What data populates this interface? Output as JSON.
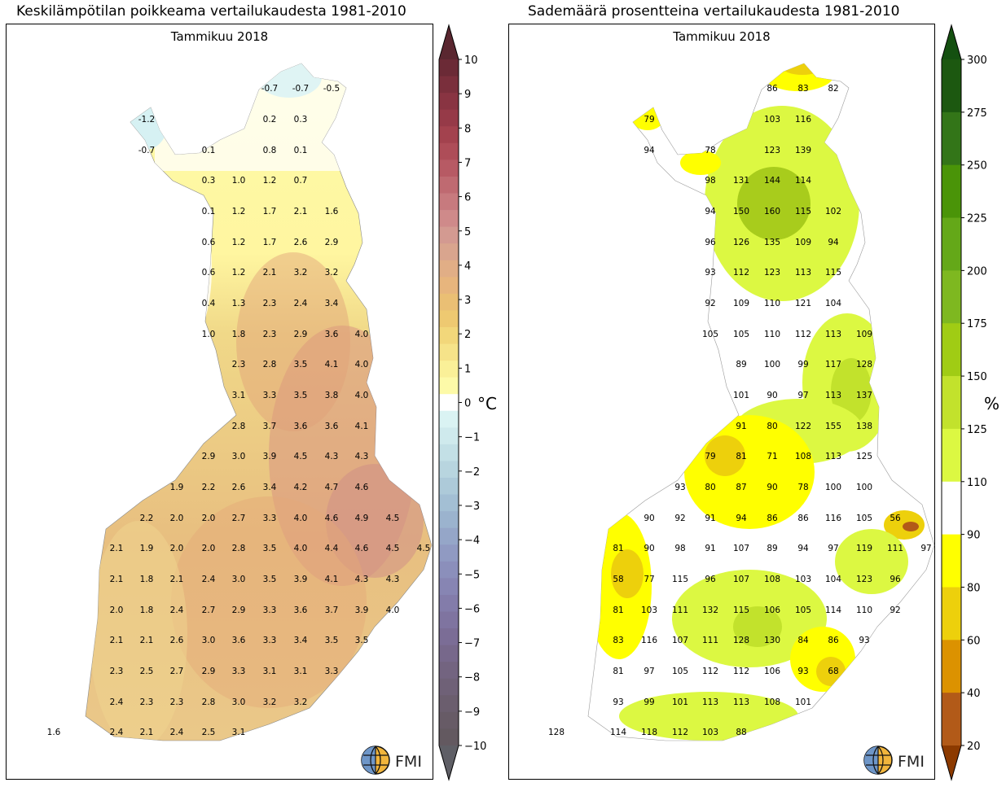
{
  "left": {
    "title": "Keskilämpötilan poikkeama vertailukaudesta 1981-2010",
    "subtitle": "Tammikuu 2018",
    "unit": "°C",
    "colorbar_ticks": [
      "10",
      "9",
      "8",
      "7",
      "6",
      "5",
      "4",
      "3",
      "2",
      "1",
      "0",
      "−1",
      "−2",
      "−3",
      "−4",
      "−5",
      "−6",
      "−7",
      "−8",
      "−9",
      "−10"
    ],
    "labels": [
      [
        "-0.7",
        331,
        108
      ],
      [
        "-0.7",
        369,
        108
      ],
      [
        "-0.5",
        407,
        108
      ],
      [
        "-1.2",
        180,
        146
      ],
      [
        "0.2",
        331,
        146
      ],
      [
        "0.3",
        369,
        146
      ],
      [
        "-0.7",
        180,
        184
      ],
      [
        "0.1",
        256,
        184
      ],
      [
        "0.8",
        331,
        184
      ],
      [
        "0.1",
        369,
        184
      ],
      [
        "0.3",
        256,
        221
      ],
      [
        "1.0",
        293,
        221
      ],
      [
        "1.2",
        331,
        221
      ],
      [
        "0.7",
        369,
        221
      ],
      [
        "0.1",
        256,
        259
      ],
      [
        "1.2",
        293,
        259
      ],
      [
        "1.7",
        331,
        259
      ],
      [
        "2.1",
        369,
        259
      ],
      [
        "1.6",
        407,
        259
      ],
      [
        "0.6",
        256,
        297
      ],
      [
        "1.2",
        293,
        297
      ],
      [
        "1.7",
        331,
        297
      ],
      [
        "2.6",
        369,
        297
      ],
      [
        "2.9",
        407,
        297
      ],
      [
        "0.6",
        256,
        334
      ],
      [
        "1.2",
        293,
        334
      ],
      [
        "2.1",
        331,
        334
      ],
      [
        "3.2",
        369,
        334
      ],
      [
        "3.2",
        407,
        334
      ],
      [
        "0.4",
        256,
        372
      ],
      [
        "1.3",
        293,
        372
      ],
      [
        "2.3",
        331,
        372
      ],
      [
        "2.4",
        369,
        372
      ],
      [
        "3.4",
        407,
        372
      ],
      [
        "1.0",
        256,
        410
      ],
      [
        "1.8",
        293,
        410
      ],
      [
        "2.3",
        331,
        410
      ],
      [
        "2.9",
        369,
        410
      ],
      [
        "3.6",
        407,
        410
      ],
      [
        "4.0",
        444,
        410
      ],
      [
        "2.3",
        293,
        447
      ],
      [
        "2.8",
        331,
        447
      ],
      [
        "3.5",
        369,
        447
      ],
      [
        "4.1",
        407,
        447
      ],
      [
        "4.0",
        444,
        447
      ],
      [
        "3.1",
        293,
        485
      ],
      [
        "3.3",
        331,
        485
      ],
      [
        "3.5",
        369,
        485
      ],
      [
        "3.8",
        407,
        485
      ],
      [
        "4.0",
        444,
        485
      ],
      [
        "2.8",
        293,
        523
      ],
      [
        "3.7",
        331,
        523
      ],
      [
        "3.6",
        369,
        523
      ],
      [
        "3.6",
        407,
        523
      ],
      [
        "4.1",
        444,
        523
      ],
      [
        "2.9",
        256,
        560
      ],
      [
        "3.0",
        293,
        560
      ],
      [
        "3.9",
        331,
        560
      ],
      [
        "4.5",
        369,
        560
      ],
      [
        "4.3",
        407,
        560
      ],
      [
        "4.3",
        444,
        560
      ],
      [
        "1.9",
        217,
        598
      ],
      [
        "2.2",
        256,
        598
      ],
      [
        "2.6",
        293,
        598
      ],
      [
        "3.4",
        331,
        598
      ],
      [
        "4.2",
        369,
        598
      ],
      [
        "4.7",
        407,
        598
      ],
      [
        "4.6",
        444,
        598
      ],
      [
        "2.2",
        180,
        636
      ],
      [
        "2.0",
        217,
        636
      ],
      [
        "2.0",
        256,
        636
      ],
      [
        "2.7",
        293,
        636
      ],
      [
        "3.3",
        331,
        636
      ],
      [
        "4.0",
        369,
        636
      ],
      [
        "4.6",
        407,
        636
      ],
      [
        "4.9",
        444,
        636
      ],
      [
        "4.5",
        482,
        636
      ],
      [
        "2.1",
        143,
        673
      ],
      [
        "1.9",
        180,
        673
      ],
      [
        "2.0",
        217,
        673
      ],
      [
        "2.0",
        256,
        673
      ],
      [
        "2.8",
        293,
        673
      ],
      [
        "3.5",
        331,
        673
      ],
      [
        "4.0",
        369,
        673
      ],
      [
        "4.4",
        407,
        673
      ],
      [
        "4.6",
        444,
        673
      ],
      [
        "4.5",
        482,
        673
      ],
      [
        "4.5",
        520,
        673
      ],
      [
        "2.1",
        143,
        711
      ],
      [
        "1.8",
        180,
        711
      ],
      [
        "2.1",
        217,
        711
      ],
      [
        "2.4",
        256,
        711
      ],
      [
        "3.0",
        293,
        711
      ],
      [
        "3.5",
        331,
        711
      ],
      [
        "3.9",
        369,
        711
      ],
      [
        "4.1",
        407,
        711
      ],
      [
        "4.3",
        444,
        711
      ],
      [
        "4.3",
        482,
        711
      ],
      [
        "2.0",
        143,
        749
      ],
      [
        "1.8",
        180,
        749
      ],
      [
        "2.4",
        217,
        749
      ],
      [
        "2.7",
        256,
        749
      ],
      [
        "2.9",
        293,
        749
      ],
      [
        "3.3",
        331,
        749
      ],
      [
        "3.6",
        369,
        749
      ],
      [
        "3.7",
        407,
        749
      ],
      [
        "3.9",
        444,
        749
      ],
      [
        "4.0",
        482,
        749
      ],
      [
        "2.1",
        143,
        786
      ],
      [
        "2.1",
        180,
        786
      ],
      [
        "2.6",
        217,
        786
      ],
      [
        "3.0",
        256,
        786
      ],
      [
        "3.6",
        293,
        786
      ],
      [
        "3.3",
        331,
        786
      ],
      [
        "3.4",
        369,
        786
      ],
      [
        "3.5",
        407,
        786
      ],
      [
        "3.5",
        444,
        786
      ],
      [
        "2.3",
        143,
        824
      ],
      [
        "2.5",
        180,
        824
      ],
      [
        "2.7",
        217,
        824
      ],
      [
        "2.9",
        256,
        824
      ],
      [
        "3.3",
        293,
        824
      ],
      [
        "3.1",
        331,
        824
      ],
      [
        "3.1",
        369,
        824
      ],
      [
        "3.3",
        407,
        824
      ],
      [
        "2.4",
        143,
        862
      ],
      [
        "2.3",
        180,
        862
      ],
      [
        "2.3",
        217,
        862
      ],
      [
        "2.8",
        256,
        862
      ],
      [
        "3.0",
        293,
        862
      ],
      [
        "3.2",
        331,
        862
      ],
      [
        "3.2",
        369,
        862
      ],
      [
        "1.6",
        66,
        899
      ],
      [
        "2.4",
        143,
        899
      ],
      [
        "2.1",
        180,
        899
      ],
      [
        "2.4",
        217,
        899
      ],
      [
        "2.5",
        256,
        899
      ],
      [
        "3.1",
        293,
        899
      ]
    ]
  },
  "right": {
    "title": "Sademäärä prosentteina vertailukaudesta 1981-2010",
    "subtitle": "Tammikuu 2018",
    "unit": "%",
    "colorbar_ticks": [
      "300",
      "275",
      "250",
      "225",
      "200",
      "175",
      "150",
      "125",
      "110",
      "90",
      "80",
      "60",
      "40",
      "20"
    ],
    "labels": [
      [
        "86",
        948,
        108
      ],
      [
        "83",
        986,
        108
      ],
      [
        "82",
        1023,
        108
      ],
      [
        "79",
        797,
        146
      ],
      [
        "103",
        948,
        146
      ],
      [
        "116",
        986,
        146
      ],
      [
        "94",
        797,
        184
      ],
      [
        "78",
        872,
        184
      ],
      [
        "123",
        948,
        184
      ],
      [
        "139",
        986,
        184
      ],
      [
        "98",
        872,
        221
      ],
      [
        "131",
        910,
        221
      ],
      [
        "144",
        948,
        221
      ],
      [
        "114",
        986,
        221
      ],
      [
        "94",
        872,
        259
      ],
      [
        "150",
        910,
        259
      ],
      [
        "160",
        948,
        259
      ],
      [
        "115",
        986,
        259
      ],
      [
        "102",
        1023,
        259
      ],
      [
        "96",
        872,
        297
      ],
      [
        "126",
        910,
        297
      ],
      [
        "135",
        948,
        297
      ],
      [
        "109",
        986,
        297
      ],
      [
        "94",
        1023,
        297
      ],
      [
        "93",
        872,
        334
      ],
      [
        "112",
        910,
        334
      ],
      [
        "123",
        948,
        334
      ],
      [
        "113",
        986,
        334
      ],
      [
        "115",
        1023,
        334
      ],
      [
        "92",
        872,
        372
      ],
      [
        "109",
        910,
        372
      ],
      [
        "110",
        948,
        372
      ],
      [
        "121",
        986,
        372
      ],
      [
        "104",
        1023,
        372
      ],
      [
        "105",
        872,
        410
      ],
      [
        "105",
        910,
        410
      ],
      [
        "110",
        948,
        410
      ],
      [
        "112",
        986,
        410
      ],
      [
        "113",
        1023,
        410
      ],
      [
        "109",
        1061,
        410
      ],
      [
        "89",
        910,
        447
      ],
      [
        "100",
        948,
        447
      ],
      [
        "99",
        986,
        447
      ],
      [
        "117",
        1023,
        447
      ],
      [
        "128",
        1061,
        447
      ],
      [
        "101",
        910,
        485
      ],
      [
        "90",
        948,
        485
      ],
      [
        "97",
        986,
        485
      ],
      [
        "113",
        1023,
        485
      ],
      [
        "137",
        1061,
        485
      ],
      [
        "91",
        910,
        523
      ],
      [
        "80",
        948,
        523
      ],
      [
        "122",
        986,
        523
      ],
      [
        "155",
        1023,
        523
      ],
      [
        "138",
        1061,
        523
      ],
      [
        "79",
        872,
        560
      ],
      [
        "81",
        910,
        560
      ],
      [
        "71",
        948,
        560
      ],
      [
        "108",
        986,
        560
      ],
      [
        "113",
        1023,
        560
      ],
      [
        "125",
        1061,
        560
      ],
      [
        "93",
        835,
        598
      ],
      [
        "80",
        872,
        598
      ],
      [
        "87",
        910,
        598
      ],
      [
        "90",
        948,
        598
      ],
      [
        "78",
        986,
        598
      ],
      [
        "100",
        1023,
        598
      ],
      [
        "100",
        1061,
        598
      ],
      [
        "90",
        797,
        636
      ],
      [
        "92",
        835,
        636
      ],
      [
        "91",
        872,
        636
      ],
      [
        "94",
        910,
        636
      ],
      [
        "86",
        948,
        636
      ],
      [
        "86",
        986,
        636
      ],
      [
        "116",
        1023,
        636
      ],
      [
        "105",
        1061,
        636
      ],
      [
        "56",
        1099,
        636
      ],
      [
        "81",
        759,
        673
      ],
      [
        "90",
        797,
        673
      ],
      [
        "98",
        835,
        673
      ],
      [
        "91",
        872,
        673
      ],
      [
        "107",
        910,
        673
      ],
      [
        "89",
        948,
        673
      ],
      [
        "94",
        986,
        673
      ],
      [
        "97",
        1023,
        673
      ],
      [
        "119",
        1061,
        673
      ],
      [
        "111",
        1099,
        673
      ],
      [
        "97",
        1137,
        673
      ],
      [
        "58",
        759,
        711
      ],
      [
        "77",
        797,
        711
      ],
      [
        "115",
        835,
        711
      ],
      [
        "96",
        872,
        711
      ],
      [
        "107",
        910,
        711
      ],
      [
        "108",
        948,
        711
      ],
      [
        "103",
        986,
        711
      ],
      [
        "104",
        1023,
        711
      ],
      [
        "123",
        1061,
        711
      ],
      [
        "96",
        1099,
        711
      ],
      [
        "81",
        759,
        749
      ],
      [
        "103",
        797,
        749
      ],
      [
        "111",
        835,
        749
      ],
      [
        "132",
        872,
        749
      ],
      [
        "115",
        910,
        749
      ],
      [
        "106",
        948,
        749
      ],
      [
        "105",
        986,
        749
      ],
      [
        "114",
        1023,
        749
      ],
      [
        "110",
        1061,
        749
      ],
      [
        "92",
        1099,
        749
      ],
      [
        "83",
        759,
        786
      ],
      [
        "116",
        797,
        786
      ],
      [
        "107",
        835,
        786
      ],
      [
        "111",
        872,
        786
      ],
      [
        "128",
        910,
        786
      ],
      [
        "130",
        948,
        786
      ],
      [
        "84",
        986,
        786
      ],
      [
        "86",
        1023,
        786
      ],
      [
        "93",
        1061,
        786
      ],
      [
        "81",
        759,
        824
      ],
      [
        "97",
        797,
        824
      ],
      [
        "105",
        835,
        824
      ],
      [
        "112",
        872,
        824
      ],
      [
        "112",
        910,
        824
      ],
      [
        "106",
        948,
        824
      ],
      [
        "93",
        986,
        824
      ],
      [
        "68",
        1023,
        824
      ],
      [
        "93",
        759,
        862
      ],
      [
        "99",
        797,
        862
      ],
      [
        "101",
        835,
        862
      ],
      [
        "113",
        872,
        862
      ],
      [
        "113",
        910,
        862
      ],
      [
        "108",
        948,
        862
      ],
      [
        "101",
        986,
        862
      ],
      [
        "128",
        683,
        899
      ],
      [
        "114",
        759,
        899
      ],
      [
        "118",
        797,
        899
      ],
      [
        "112",
        835,
        899
      ],
      [
        "103",
        872,
        899
      ],
      [
        "88",
        910,
        899
      ]
    ]
  },
  "logo": {
    "text": "FMI"
  }
}
